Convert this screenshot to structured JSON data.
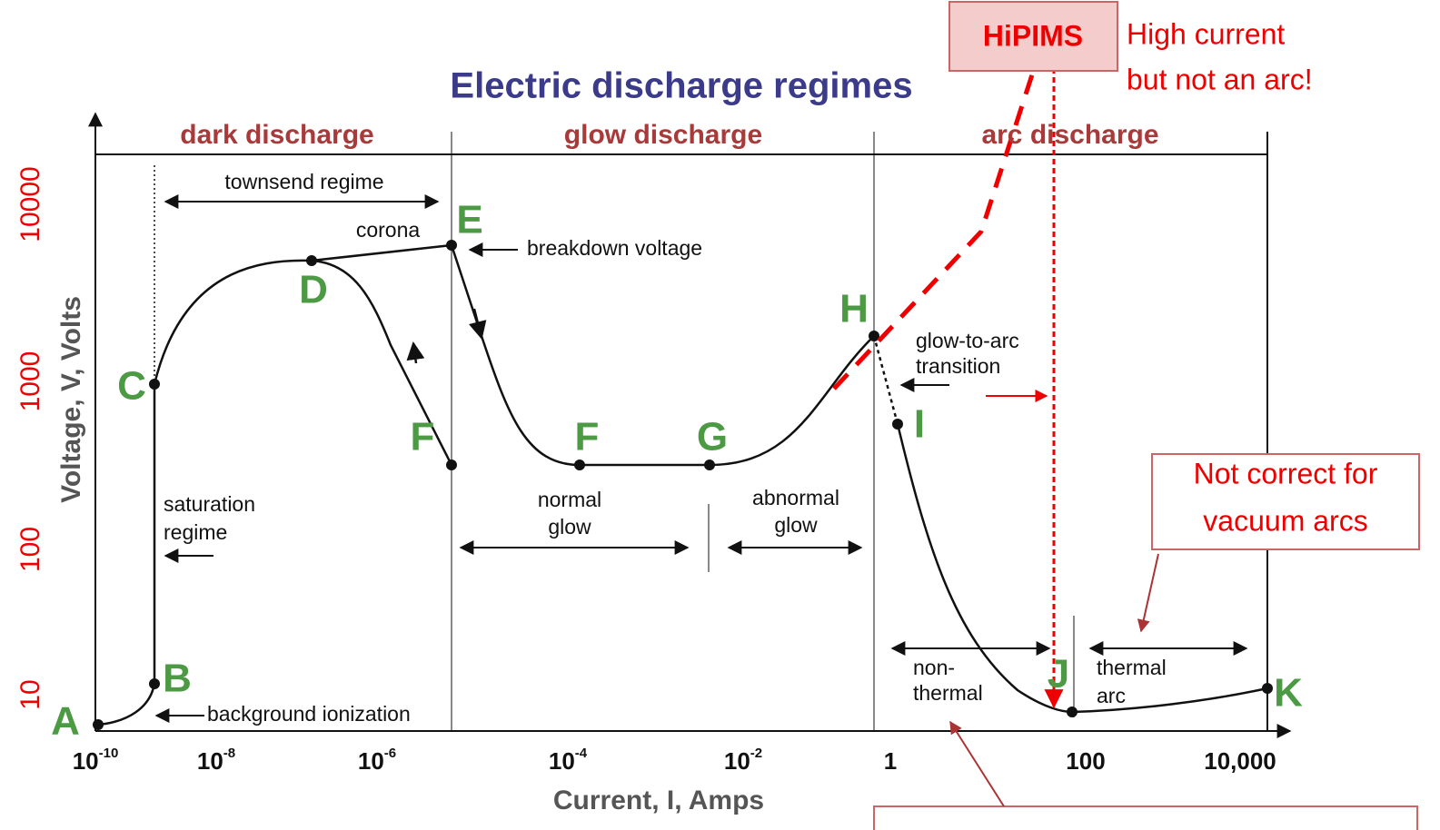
{
  "title": "Electric discharge regimes",
  "axes": {
    "y_label": "Voltage, V, Volts",
    "x_label": "Current, I, Amps",
    "x_ticks": [
      {
        "base": "10",
        "exp": "-10"
      },
      {
        "base": "10",
        "exp": "-8"
      },
      {
        "base": "10",
        "exp": "-6"
      },
      {
        "base": "10",
        "exp": "-4"
      },
      {
        "base": "10",
        "exp": "-2"
      },
      {
        "base": "1"
      },
      {
        "base": "100"
      },
      {
        "base": "10,000"
      }
    ],
    "y_ticks": [
      "10000",
      "1000",
      "100",
      "10"
    ]
  },
  "regions": [
    "dark discharge",
    "glow discharge",
    "arc discharge"
  ],
  "points": [
    "A",
    "B",
    "C",
    "D",
    "E",
    "F",
    "F",
    "G",
    "H",
    "I",
    "J",
    "K"
  ],
  "annotations": {
    "townsend": "townsend regime",
    "corona": "corona",
    "breakdown": "breakdown voltage",
    "saturation": [
      "saturation",
      "regime"
    ],
    "normal": [
      "normal",
      "glow"
    ],
    "abnormal": [
      "abnormal",
      "glow"
    ],
    "transition": [
      "glow-to-arc",
      "transition"
    ],
    "nonthermal": [
      "non-",
      "thermal"
    ],
    "thermal": [
      "thermal",
      "arc"
    ],
    "background": "background ionization"
  },
  "callouts": {
    "hipims": "HiPIMS",
    "high_current": [
      "High current",
      "but not an arc!"
    ],
    "not_correct": [
      "Not correct for",
      "vacuum arcs"
    ]
  }
}
